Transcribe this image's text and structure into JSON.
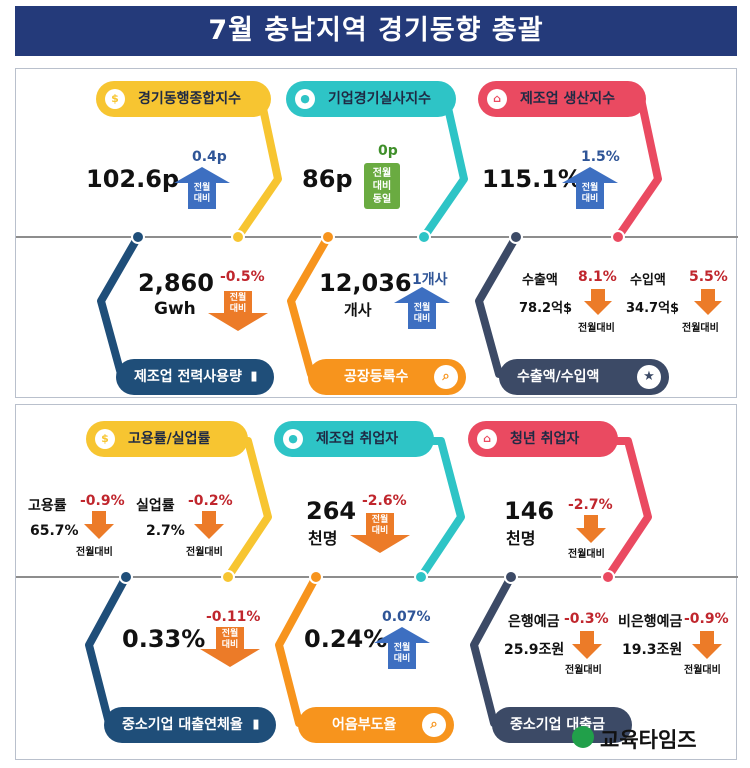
{
  "title": "7월 충남지역 경기동향 총괄",
  "top": {
    "pills": [
      {
        "label": "경기동행종합지수",
        "icon": "$"
      },
      {
        "label": "기업경기실사지수",
        "icon": "person"
      },
      {
        "label": "제조업 생산지수",
        "icon": "home"
      }
    ],
    "coincident": {
      "value": "102.6p",
      "change": "0.4p",
      "note": "전월 대비"
    },
    "bsi": {
      "value": "86p",
      "change": "0p",
      "note": "전월 대비 동일"
    },
    "production": {
      "value": "115.1%",
      "change": "1.5%",
      "note": "전월 대비"
    },
    "power": {
      "value": "2,860",
      "unit": "Gwh",
      "change": "-0.5%",
      "note": "전월 대비"
    },
    "factory": {
      "value": "12,036",
      "unit": "개사",
      "change": "1개사",
      "note": "전월 대비"
    },
    "export": {
      "label": "수출액",
      "change": "8.1%",
      "value": "78.2억$",
      "note": "전월대비"
    },
    "import": {
      "label": "수입액",
      "change": "5.5%",
      "value": "34.7억$",
      "note": "전월대비"
    },
    "bottom_pills": [
      {
        "label": "제조업 전력사용량",
        "icon": "bar-chart"
      },
      {
        "label": "공장등록수",
        "icon": "search"
      },
      {
        "label": "수출액/수입액",
        "icon": "star"
      }
    ]
  },
  "bottom": {
    "pills": [
      {
        "label": "고용률/실업률",
        "icon": "$"
      },
      {
        "label": "제조업 취업자",
        "icon": "person"
      },
      {
        "label": "청년 취업자",
        "icon": "home"
      }
    ],
    "employment": {
      "label": "고용률",
      "change": "-0.9%",
      "value": "65.7%"
    },
    "unemployment": {
      "label": "실업률",
      "change": "-0.2%",
      "value": "2.7%",
      "note": "전월대비"
    },
    "mfg_workers": {
      "value": "264",
      "unit": "천명",
      "change": "-2.6%",
      "note": "전월 대비"
    },
    "youth_workers": {
      "value": "146",
      "unit": "천명",
      "change": "-2.7%",
      "note": "전월대비"
    },
    "sme_delinquency": {
      "value": "0.33%",
      "change": "-0.11%",
      "note": "전월 대비"
    },
    "bill_default": {
      "value": "0.24%",
      "change": "0.07%",
      "note": "전월 대비"
    },
    "bank_deposit": {
      "label": "은행예금",
      "change": "-0.3%",
      "value": "25.9조원",
      "note": "전월대비"
    },
    "nonbank_deposit": {
      "label": "비은행예금",
      "change": "-0.9%",
      "value": "19.3조원",
      "note": "전월대비"
    },
    "bottom_pills": [
      {
        "label": "중소기업 대출연체율",
        "icon": "bar-chart"
      },
      {
        "label": "어음부도율",
        "icon": "search"
      },
      {
        "label": "중소기업 대출금",
        "icon": "star"
      }
    ],
    "employment_note": "전월대비"
  },
  "logo": "교육타임즈",
  "colors": {
    "yellow": "#f7c531",
    "teal": "#2ec4c6",
    "red": "#ea4a61",
    "navy": "#1f4e79",
    "orange": "#f7941d",
    "slate": "#3c4a66",
    "up": "#3d6fc1",
    "down": "#ec7b28"
  }
}
